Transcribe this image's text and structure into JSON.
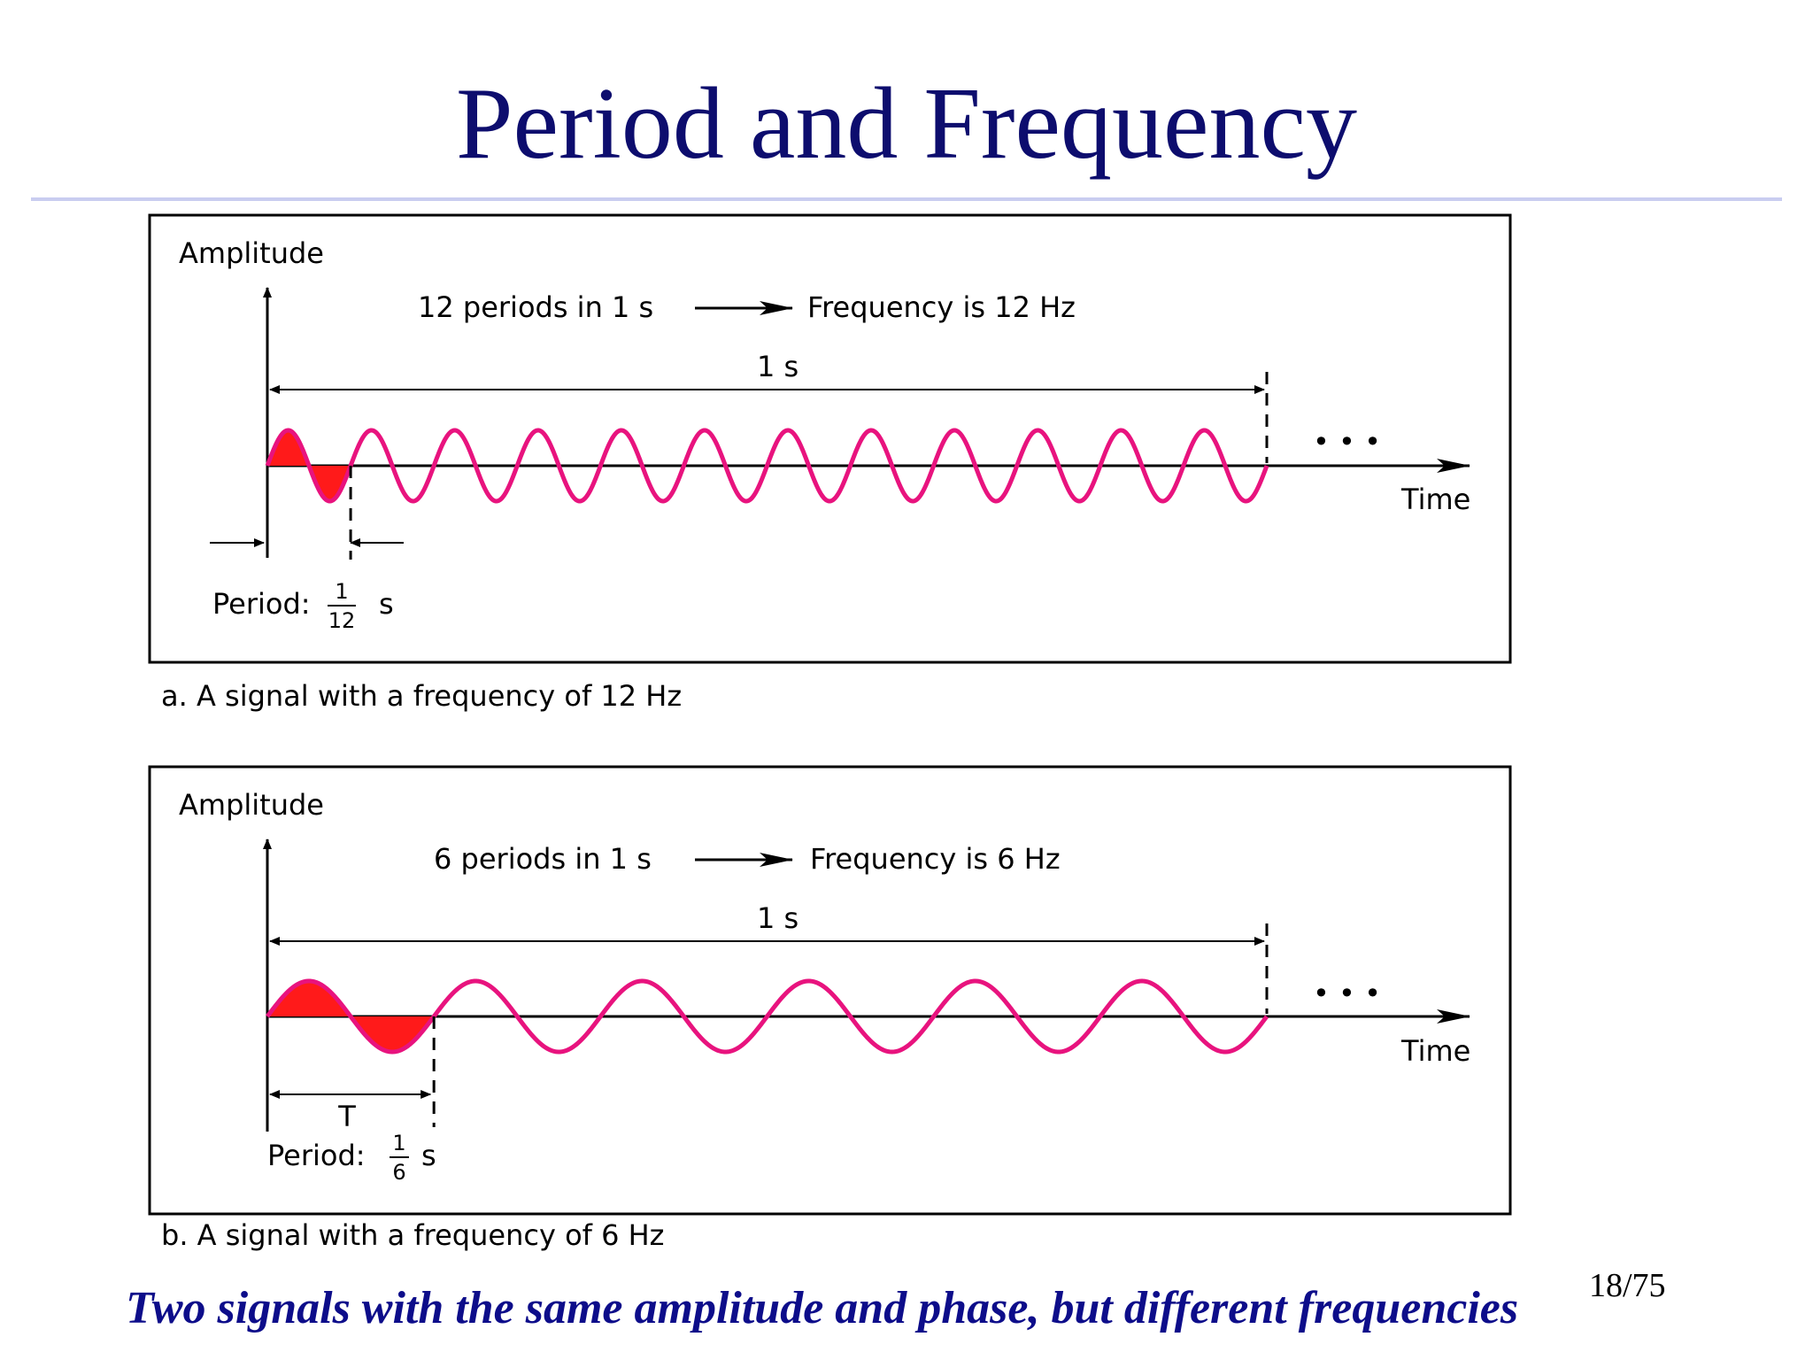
{
  "slide": {
    "title": "Period and Frequency",
    "footer": "Two signals with the same amplitude and phase, but different frequencies",
    "page_number": "18/75"
  },
  "colors": {
    "title": "#0d0d6e",
    "footer": "#0d0d8a",
    "wave": "#e8137e",
    "period_fill": "#ff1a1a",
    "rule": "#c9cdf0"
  },
  "panels": [
    {
      "periods": 12,
      "y_label": "Amplitude",
      "x_label": "Time",
      "headline_left": "12 periods in 1 s",
      "headline_right": "Frequency is 12 Hz",
      "duration_label": "1 s",
      "continuation": "• • •",
      "period_text": "Period:",
      "period_num": "1",
      "period_den": "12",
      "period_unit": "s",
      "t_label": "",
      "caption": "a. A signal with a frequency of 12 Hz"
    },
    {
      "periods": 6,
      "y_label": "Amplitude",
      "x_label": "Time",
      "headline_left": "6 periods in 1 s",
      "headline_right": "Frequency is 6 Hz",
      "duration_label": "1 s",
      "continuation": "• • •",
      "period_text": "Period:",
      "period_num": "1",
      "period_den": "6",
      "period_unit": "s",
      "t_label": "T",
      "caption": "b. A signal with a frequency of 6 Hz"
    }
  ]
}
